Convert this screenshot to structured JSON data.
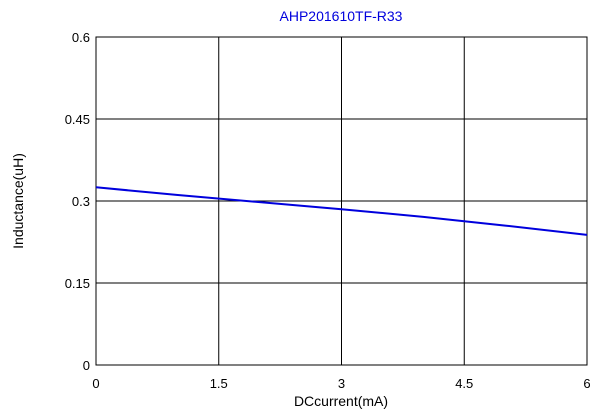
{
  "chart_data": {
    "type": "line",
    "title": "AHP201610TF-R33",
    "xlabel": "DCcurrent(mA)",
    "ylabel": "Inductance(uH)",
    "xlim": [
      0,
      6
    ],
    "ylim": [
      0,
      0.6
    ],
    "x_ticks": [
      "0",
      "1.5",
      "3",
      "4.5",
      "6"
    ],
    "y_ticks": [
      "0",
      "0.15",
      "0.3",
      "0.45",
      "0.6"
    ],
    "grid": true,
    "series": [
      {
        "color": "#0000dd",
        "x": [
          0,
          1,
          2,
          3,
          4,
          5,
          6
        ],
        "y": [
          0.325,
          0.311,
          0.298,
          0.285,
          0.271,
          0.255,
          0.238
        ]
      }
    ]
  },
  "colors": {
    "title": "#0000dd",
    "line": "#0000dd",
    "grid": "#000000"
  }
}
